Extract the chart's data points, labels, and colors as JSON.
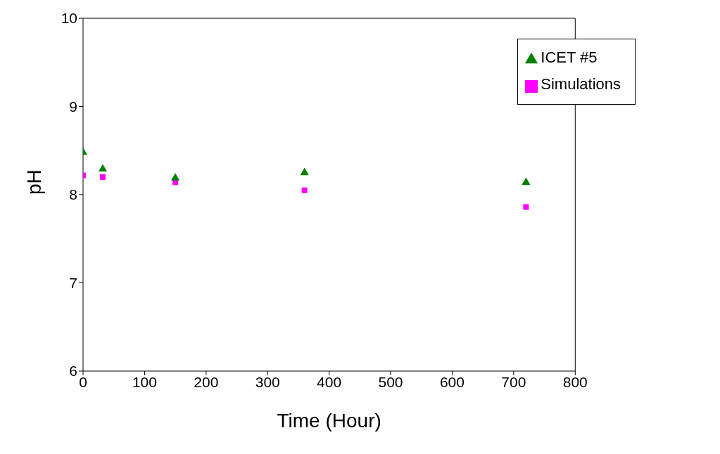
{
  "chart_data": {
    "type": "scatter",
    "xlabel": "Time (Hour)",
    "ylabel": "pH",
    "xlim": [
      0,
      800
    ],
    "xticks": [
      0,
      100,
      200,
      300,
      400,
      500,
      600,
      700,
      800
    ],
    "ylim": [
      6,
      10
    ],
    "yticks": [
      6,
      7,
      8,
      9,
      10
    ],
    "grid": false,
    "legend": "top right",
    "series": [
      {
        "name": "Simulations",
        "color": "#ff00ff",
        "marker": "square",
        "x": [
          0,
          32,
          150,
          360,
          720
        ],
        "values": [
          8.22,
          8.2,
          8.14,
          8.05,
          7.86
        ]
      },
      {
        "name": "ICET #5",
        "color": "#008000",
        "marker": "triangle",
        "x": [
          0,
          32,
          150,
          360,
          720
        ],
        "values": [
          8.48,
          8.29,
          8.19,
          8.25,
          8.14
        ]
      }
    ]
  }
}
